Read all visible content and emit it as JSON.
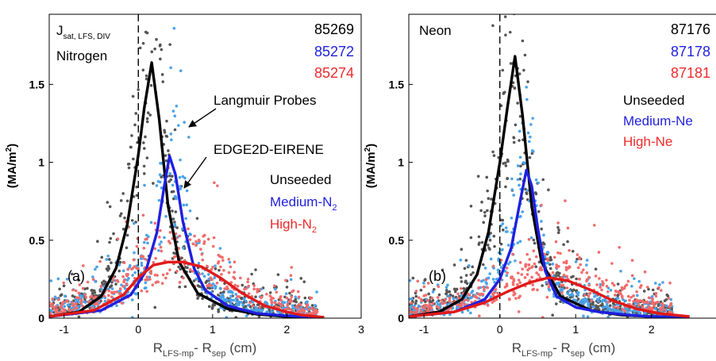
{
  "chart_data": [
    {
      "panel": "(a)",
      "type": "scatter",
      "quantity_main": "J",
      "quantity_sub": "sat, LFS, DIV",
      "species_label": "Nitrogen",
      "ylabel": "(MA/m",
      "ylabel_sup": "2",
      "ylabel_close": ")",
      "xlabel_main": "R",
      "xlabel_sub1": "LFS-mp",
      "xlabel_mid": "- R",
      "xlabel_sub2": "sep",
      "xlabel_unit": " (cm)",
      "xlim": [
        -1.2,
        3.0
      ],
      "ylim": [
        0,
        1.95
      ],
      "xticks": [
        "-1",
        "0",
        "1",
        "2",
        "3"
      ],
      "yticks": [
        "0",
        "0.5",
        "1",
        "1.5"
      ],
      "xtick_values": [
        -1,
        0,
        1,
        2,
        3
      ],
      "ytick_values": [
        0,
        0.5,
        1,
        1.5
      ],
      "separatrix_x": 0,
      "shots": [
        {
          "label": "85269",
          "color": "#000000"
        },
        {
          "label": "85272",
          "color": "#1f1fe0"
        },
        {
          "label": "85274",
          "color": "#ee2a2a"
        }
      ],
      "annotations": {
        "probes": "Langmuir Probes",
        "code": "EDGE2D-EIRENE",
        "case1": "Unseeded",
        "case2": "Medium-N",
        "case2_sub": "2",
        "case3": "High-N",
        "case3_sub": "2"
      },
      "series": [
        {
          "name": "Unseeded",
          "color": "#000000",
          "x": [
            -1.2,
            -0.8,
            -0.5,
            -0.3,
            -0.15,
            0.0,
            0.08,
            0.18,
            0.28,
            0.4,
            0.55,
            0.8,
            1.2,
            1.6,
            2.0,
            2.5
          ],
          "y": [
            0.01,
            0.04,
            0.14,
            0.32,
            0.6,
            1.05,
            1.35,
            1.64,
            1.28,
            0.72,
            0.36,
            0.16,
            0.06,
            0.025,
            0.01,
            0.005
          ]
        },
        {
          "name": "Medium-N2",
          "color": "#1f1fe0",
          "x": [
            -1.2,
            -0.5,
            -0.1,
            0.1,
            0.25,
            0.35,
            0.42,
            0.5,
            0.6,
            0.75,
            0.9,
            1.2,
            1.6,
            2.0,
            2.5
          ],
          "y": [
            0.01,
            0.05,
            0.15,
            0.3,
            0.55,
            0.85,
            1.04,
            0.92,
            0.62,
            0.32,
            0.18,
            0.08,
            0.03,
            0.015,
            0.005
          ]
        },
        {
          "name": "High-N2",
          "color": "#e01a1a",
          "x": [
            -1.2,
            -0.6,
            -0.2,
            0.0,
            0.2,
            0.4,
            0.6,
            0.85,
            1.1,
            1.4,
            1.7,
            2.0,
            2.2,
            2.5
          ],
          "y": [
            0.01,
            0.05,
            0.15,
            0.26,
            0.34,
            0.36,
            0.36,
            0.33,
            0.26,
            0.16,
            0.08,
            0.04,
            0.02,
            0.005
          ]
        }
      ]
    },
    {
      "panel": "(b)",
      "type": "scatter",
      "species_label": "Neon",
      "ylabel": "(MA/m",
      "ylabel_sup": "2",
      "ylabel_close": ")",
      "xlabel_main": "R",
      "xlabel_sub1": "LFS-mp",
      "xlabel_mid": "- R",
      "xlabel_sub2": "sep",
      "xlabel_unit": " (cm)",
      "xlim": [
        -1.2,
        2.85
      ],
      "ylim": [
        0,
        1.95
      ],
      "xticks": [
        "-1",
        "0",
        "1",
        "2"
      ],
      "yticks": [
        "0",
        "0.5",
        "1",
        "1.5"
      ],
      "xtick_values": [
        -1,
        0,
        1,
        2
      ],
      "ytick_values": [
        0,
        0.5,
        1,
        1.5
      ],
      "separatrix_x": 0,
      "shots": [
        {
          "label": "87176",
          "color": "#000000"
        },
        {
          "label": "87178",
          "color": "#1f1fe0"
        },
        {
          "label": "87181",
          "color": "#ee2a2a"
        }
      ],
      "annotations": {
        "case1": "Unseeded",
        "case2": "Medium-Ne",
        "case3": "High-Ne"
      },
      "series": [
        {
          "name": "Unseeded",
          "color": "#000000",
          "x": [
            -1.2,
            -0.8,
            -0.5,
            -0.3,
            -0.15,
            0.0,
            0.1,
            0.2,
            0.3,
            0.42,
            0.55,
            0.8,
            1.2,
            1.6,
            2.0,
            2.5
          ],
          "y": [
            0.01,
            0.04,
            0.12,
            0.28,
            0.55,
            1.0,
            1.35,
            1.68,
            1.3,
            0.72,
            0.36,
            0.14,
            0.05,
            0.02,
            0.01,
            0.005
          ]
        },
        {
          "name": "Medium-Ne",
          "color": "#1f1fe0",
          "x": [
            -1.2,
            -0.6,
            -0.2,
            0.0,
            0.15,
            0.28,
            0.35,
            0.42,
            0.5,
            0.6,
            0.75,
            1.0,
            1.3,
            1.7,
            2.0,
            2.5
          ],
          "y": [
            0.01,
            0.04,
            0.12,
            0.25,
            0.45,
            0.78,
            0.95,
            0.85,
            0.58,
            0.3,
            0.14,
            0.07,
            0.04,
            0.02,
            0.01,
            0.005
          ]
        },
        {
          "name": "High-Ne",
          "color": "#e01a1a",
          "x": [
            -1.2,
            -0.6,
            -0.2,
            0.1,
            0.4,
            0.65,
            0.9,
            1.2,
            1.5,
            1.8,
            2.1,
            2.5
          ],
          "y": [
            0.01,
            0.04,
            0.1,
            0.17,
            0.23,
            0.26,
            0.24,
            0.18,
            0.11,
            0.06,
            0.03,
            0.01
          ]
        }
      ]
    }
  ]
}
